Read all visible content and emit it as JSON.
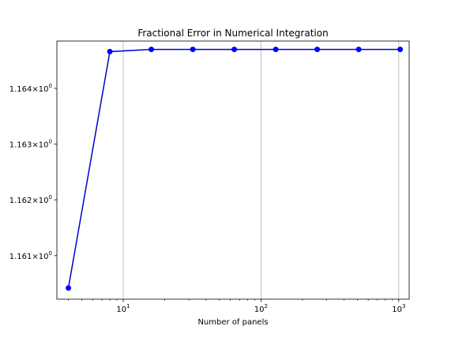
{
  "chart_data": {
    "type": "line",
    "title": "Fractional Error in Numerical Integration",
    "xlabel": "Number of panels",
    "ylabel": "",
    "x_scale": "log",
    "y_scale": "log",
    "xlim": [
      3.3,
      1190
    ],
    "ylim": [
      1.16022,
      1.16485
    ],
    "grid": "x-major",
    "line_color": "#0000cc",
    "marker_color": "#0000ff",
    "x_ticks": [
      {
        "value": 10,
        "base": "10",
        "exp": "1"
      },
      {
        "value": 100,
        "base": "10",
        "exp": "2"
      },
      {
        "value": 1000,
        "base": "10",
        "exp": "3"
      }
    ],
    "y_ticks": [
      {
        "value": 1.161,
        "mant": "1.161",
        "times": "×",
        "base": "10",
        "exp": "0"
      },
      {
        "value": 1.162,
        "mant": "1.162",
        "times": "×",
        "base": "10",
        "exp": "0"
      },
      {
        "value": 1.163,
        "mant": "1.163",
        "times": "×",
        "base": "10",
        "exp": "0"
      },
      {
        "value": 1.164,
        "mant": "1.164",
        "times": "×",
        "base": "10",
        "exp": "0"
      }
    ],
    "series": [
      {
        "x": [
          4,
          8,
          16,
          32,
          64,
          128,
          256,
          512,
          1024
        ],
        "y": [
          1.16042,
          1.16466,
          1.1647,
          1.1647,
          1.1647,
          1.1647,
          1.1647,
          1.1647,
          1.1647
        ]
      }
    ]
  }
}
